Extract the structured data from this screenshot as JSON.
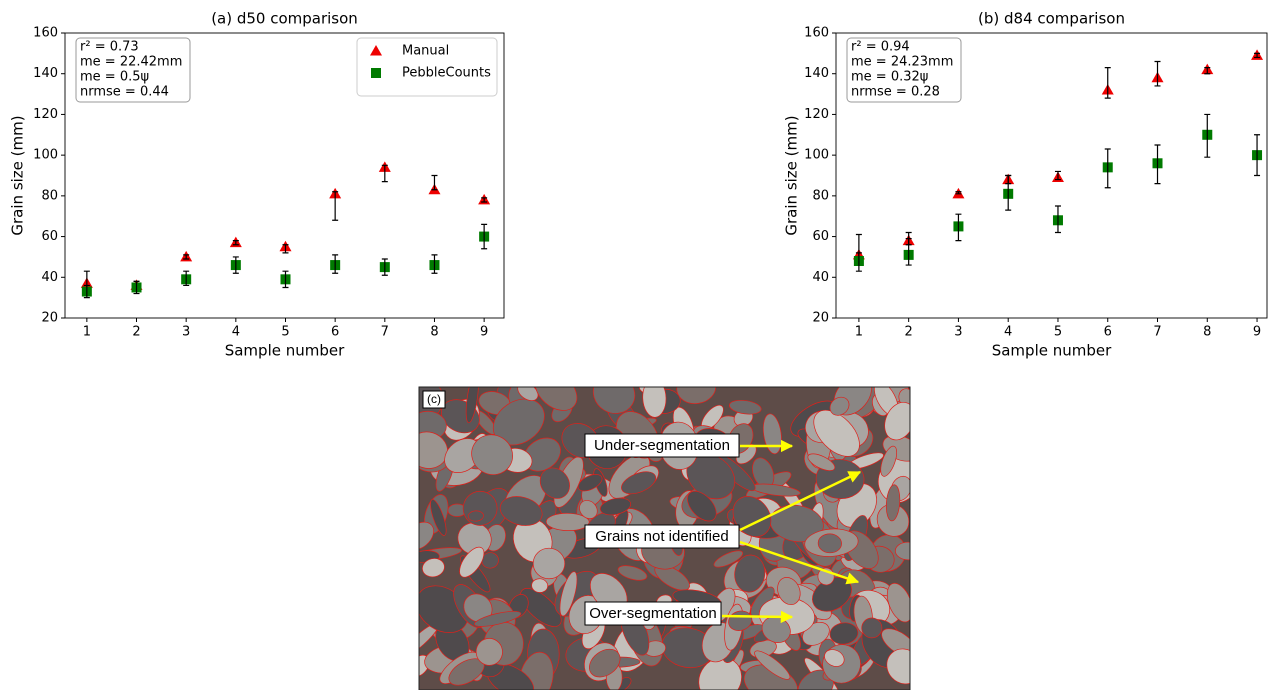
{
  "chart_data": [
    {
      "type": "scatter",
      "title": "(a) d50 comparison",
      "xlabel": "Sample number",
      "ylabel": "Grain size (mm)",
      "x": [
        1,
        2,
        3,
        4,
        5,
        6,
        7,
        8,
        9
      ],
      "xlim": [
        0.56,
        9.4
      ],
      "xticks": [
        1,
        2,
        3,
        4,
        5,
        6,
        7,
        8,
        9
      ],
      "ylim": [
        20,
        160
      ],
      "yticks": [
        20,
        40,
        60,
        80,
        100,
        120,
        140,
        160
      ],
      "stats_text": [
        "r² = 0.73",
        "me = 22.42mm",
        "me = 0.5ψ",
        "nrmse = 0.44"
      ],
      "legend": "upper right",
      "series": [
        {
          "name": "Manual",
          "color": "#ee0000",
          "marker": "triangle",
          "values": [
            37,
            36,
            50,
            57,
            55,
            81,
            94,
            83,
            78
          ],
          "low": [
            33,
            35,
            49,
            56,
            52,
            68,
            87,
            83,
            77
          ],
          "high": [
            43,
            38,
            51,
            58,
            56,
            82,
            95,
            90,
            79
          ]
        },
        {
          "name": "PebbleCounts",
          "color": "#007a00",
          "marker": "square",
          "values": [
            33,
            35,
            39,
            46,
            39,
            46,
            45,
            46,
            60
          ],
          "low": [
            30,
            32,
            36,
            42,
            35,
            42,
            41,
            42,
            54
          ],
          "high": [
            36,
            38,
            43,
            50,
            43,
            51,
            49,
            51,
            66
          ]
        }
      ]
    },
    {
      "type": "scatter",
      "title": "(b) d84 comparison",
      "xlabel": "Sample number",
      "ylabel": "Grain size (mm)",
      "x": [
        1,
        2,
        3,
        4,
        5,
        6,
        7,
        8,
        9
      ],
      "xlim": [
        0.54,
        9.2
      ],
      "xticks": [
        1,
        2,
        3,
        4,
        5,
        6,
        7,
        8,
        9
      ],
      "ylim": [
        20,
        160
      ],
      "yticks": [
        20,
        40,
        60,
        80,
        100,
        120,
        140,
        160
      ],
      "stats_text": [
        "r² = 0.94",
        "me = 24.23mm",
        "me = 0.32ψ",
        "nrmse = 0.28"
      ],
      "series": [
        {
          "name": "Manual",
          "color": "#ee0000",
          "marker": "triangle",
          "values": [
            51,
            58,
            81,
            88,
            89,
            132,
            138,
            142,
            149
          ],
          "low": [
            49,
            56,
            81,
            86,
            88,
            128,
            134,
            140,
            148
          ],
          "high": [
            52,
            59,
            82,
            90,
            92,
            143,
            146,
            143,
            150
          ]
        },
        {
          "name": "PebbleCounts",
          "color": "#007a00",
          "marker": "square",
          "values": [
            48,
            51,
            65,
            81,
            68,
            94,
            96,
            110,
            100
          ],
          "low": [
            43,
            46,
            58,
            73,
            62,
            84,
            86,
            99,
            90
          ],
          "high": [
            61,
            62,
            71,
            90,
            75,
            103,
            105,
            120,
            110
          ]
        }
      ]
    }
  ],
  "image_panel": {
    "label": "(c)",
    "annotations": [
      "Under-segmentation",
      "Grains not identified",
      "Over-segmentation"
    ]
  }
}
